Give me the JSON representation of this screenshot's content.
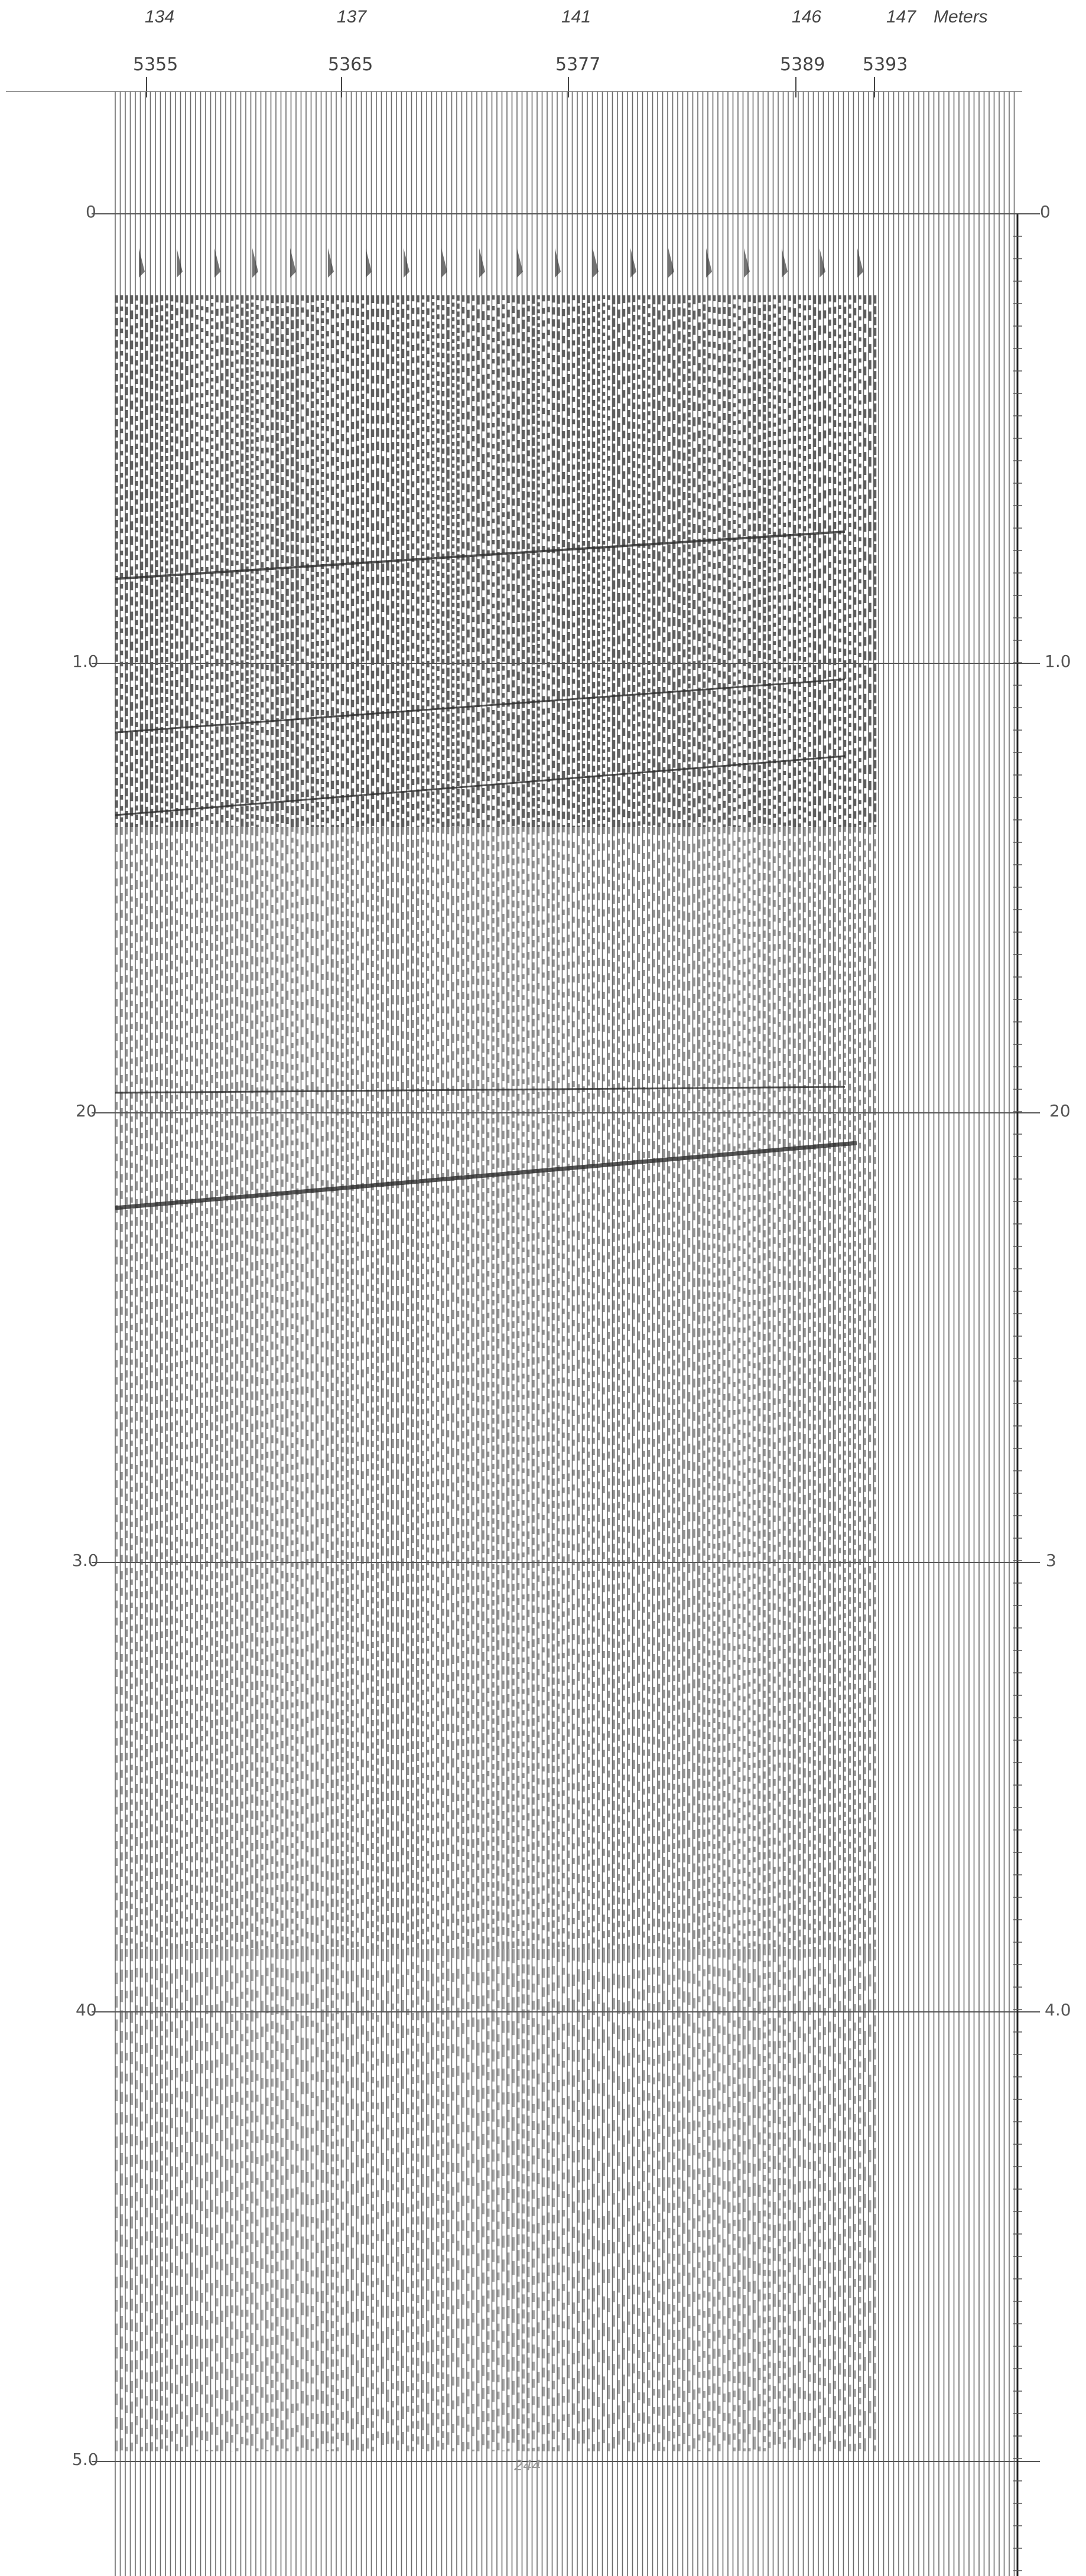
{
  "header": {
    "elevations": [
      "134",
      "137",
      "141",
      "146",
      "147"
    ],
    "units": "Meters",
    "shot_points": [
      "5355",
      "5365",
      "5377",
      "5389",
      "5393"
    ]
  },
  "time_axis_left": [
    "0",
    "1.0",
    "20",
    "3.0",
    "40",
    "5.0"
  ],
  "time_axis_right": [
    "0",
    "1.0",
    "20",
    "3",
    "4.0"
  ],
  "bottom_annotations": [
    "244"
  ],
  "colors": {
    "background": "#ffffff",
    "trace": "#3a3a3a",
    "reflector": "#2a2a2a",
    "grid": "#555555"
  }
}
